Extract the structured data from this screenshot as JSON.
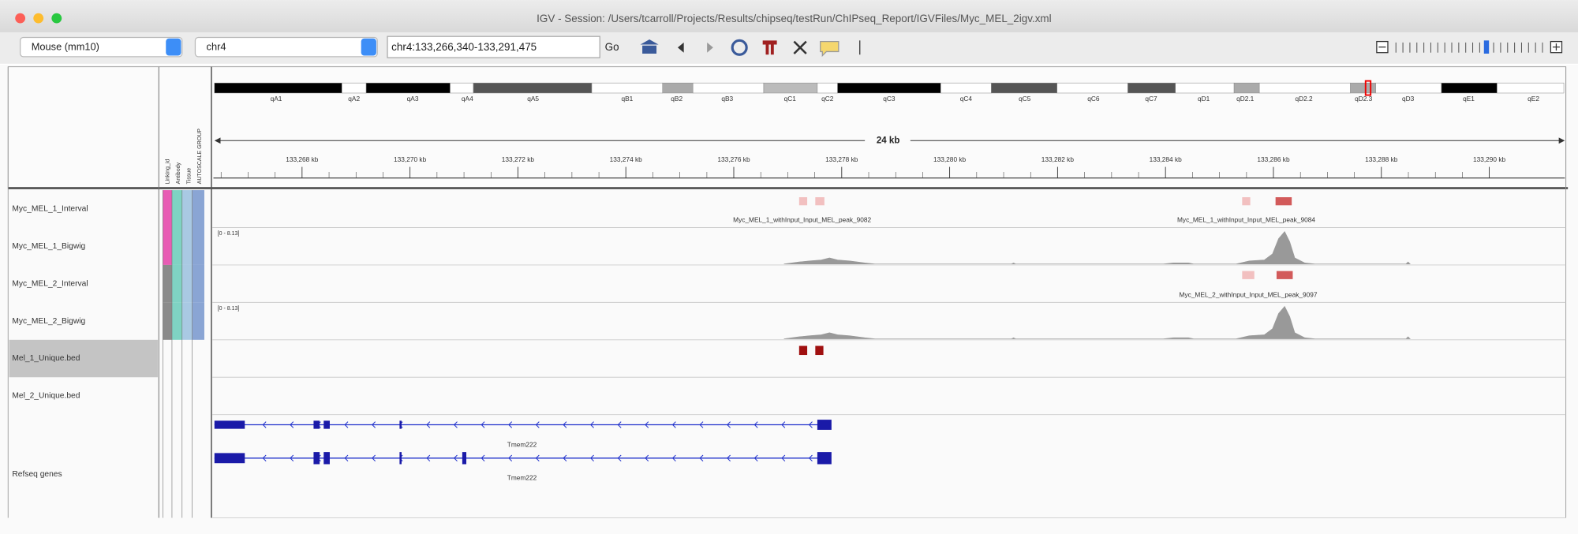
{
  "window": {
    "title": "IGV - Session: /Users/tcarroll/Projects/Results/chipseq/testRun/ChIPseq_Report/IGVFiles/Myc_MEL_2igv.xml"
  },
  "toolbar": {
    "genome": "Mouse (mm10)",
    "chromosome": "chr4",
    "locus": "chr4:133,266,340-133,291,475",
    "go": "Go"
  },
  "ideogram": {
    "bands": [
      "qA1",
      "qA2",
      "qA3",
      "qA4",
      "qA5",
      "qB1",
      "qB2",
      "qB3",
      "qC1",
      "qC2",
      "qC3",
      "qC4",
      "qC5",
      "qC6",
      "qC7",
      "qD1",
      "qD2.1",
      "qD2.2",
      "qD2.3",
      "qD3",
      "qE1",
      "qE2"
    ]
  },
  "ruler": {
    "span": "24 kb",
    "ticks": [
      "133,268 kb",
      "133,270 kb",
      "133,272 kb",
      "133,274 kb",
      "133,276 kb",
      "133,278 kb",
      "133,280 kb",
      "133,282 kb",
      "133,284 kb",
      "133,286 kb",
      "133,288 kb",
      "133,290 kb"
    ]
  },
  "attributes": [
    "Linking_id",
    "Antibody",
    "Tissue",
    "AUTOSCALE GROUP"
  ],
  "tracks": [
    {
      "name": "Myc_MEL_1_Interval",
      "features": [
        "Myc_MEL_1_withInput_Input_MEL_peak_9082",
        "Myc_MEL_1_withInput_Input_MEL_peak_9084"
      ]
    },
    {
      "name": "Myc_MEL_1_Bigwig",
      "data_range": "[0 - 8.13]"
    },
    {
      "name": "Myc_MEL_2_Interval",
      "features": [
        "Myc_MEL_2_withInput_Input_MEL_peak_9097"
      ]
    },
    {
      "name": "Myc_MEL_2_Bigwig",
      "data_range": "[0 - 8.13]"
    },
    {
      "name": "Mel_1_Unique.bed"
    },
    {
      "name": "Mel_2_Unique.bed"
    },
    {
      "name": "Refseq genes",
      "features": [
        "Tmem222",
        "Tmem222"
      ]
    }
  ]
}
